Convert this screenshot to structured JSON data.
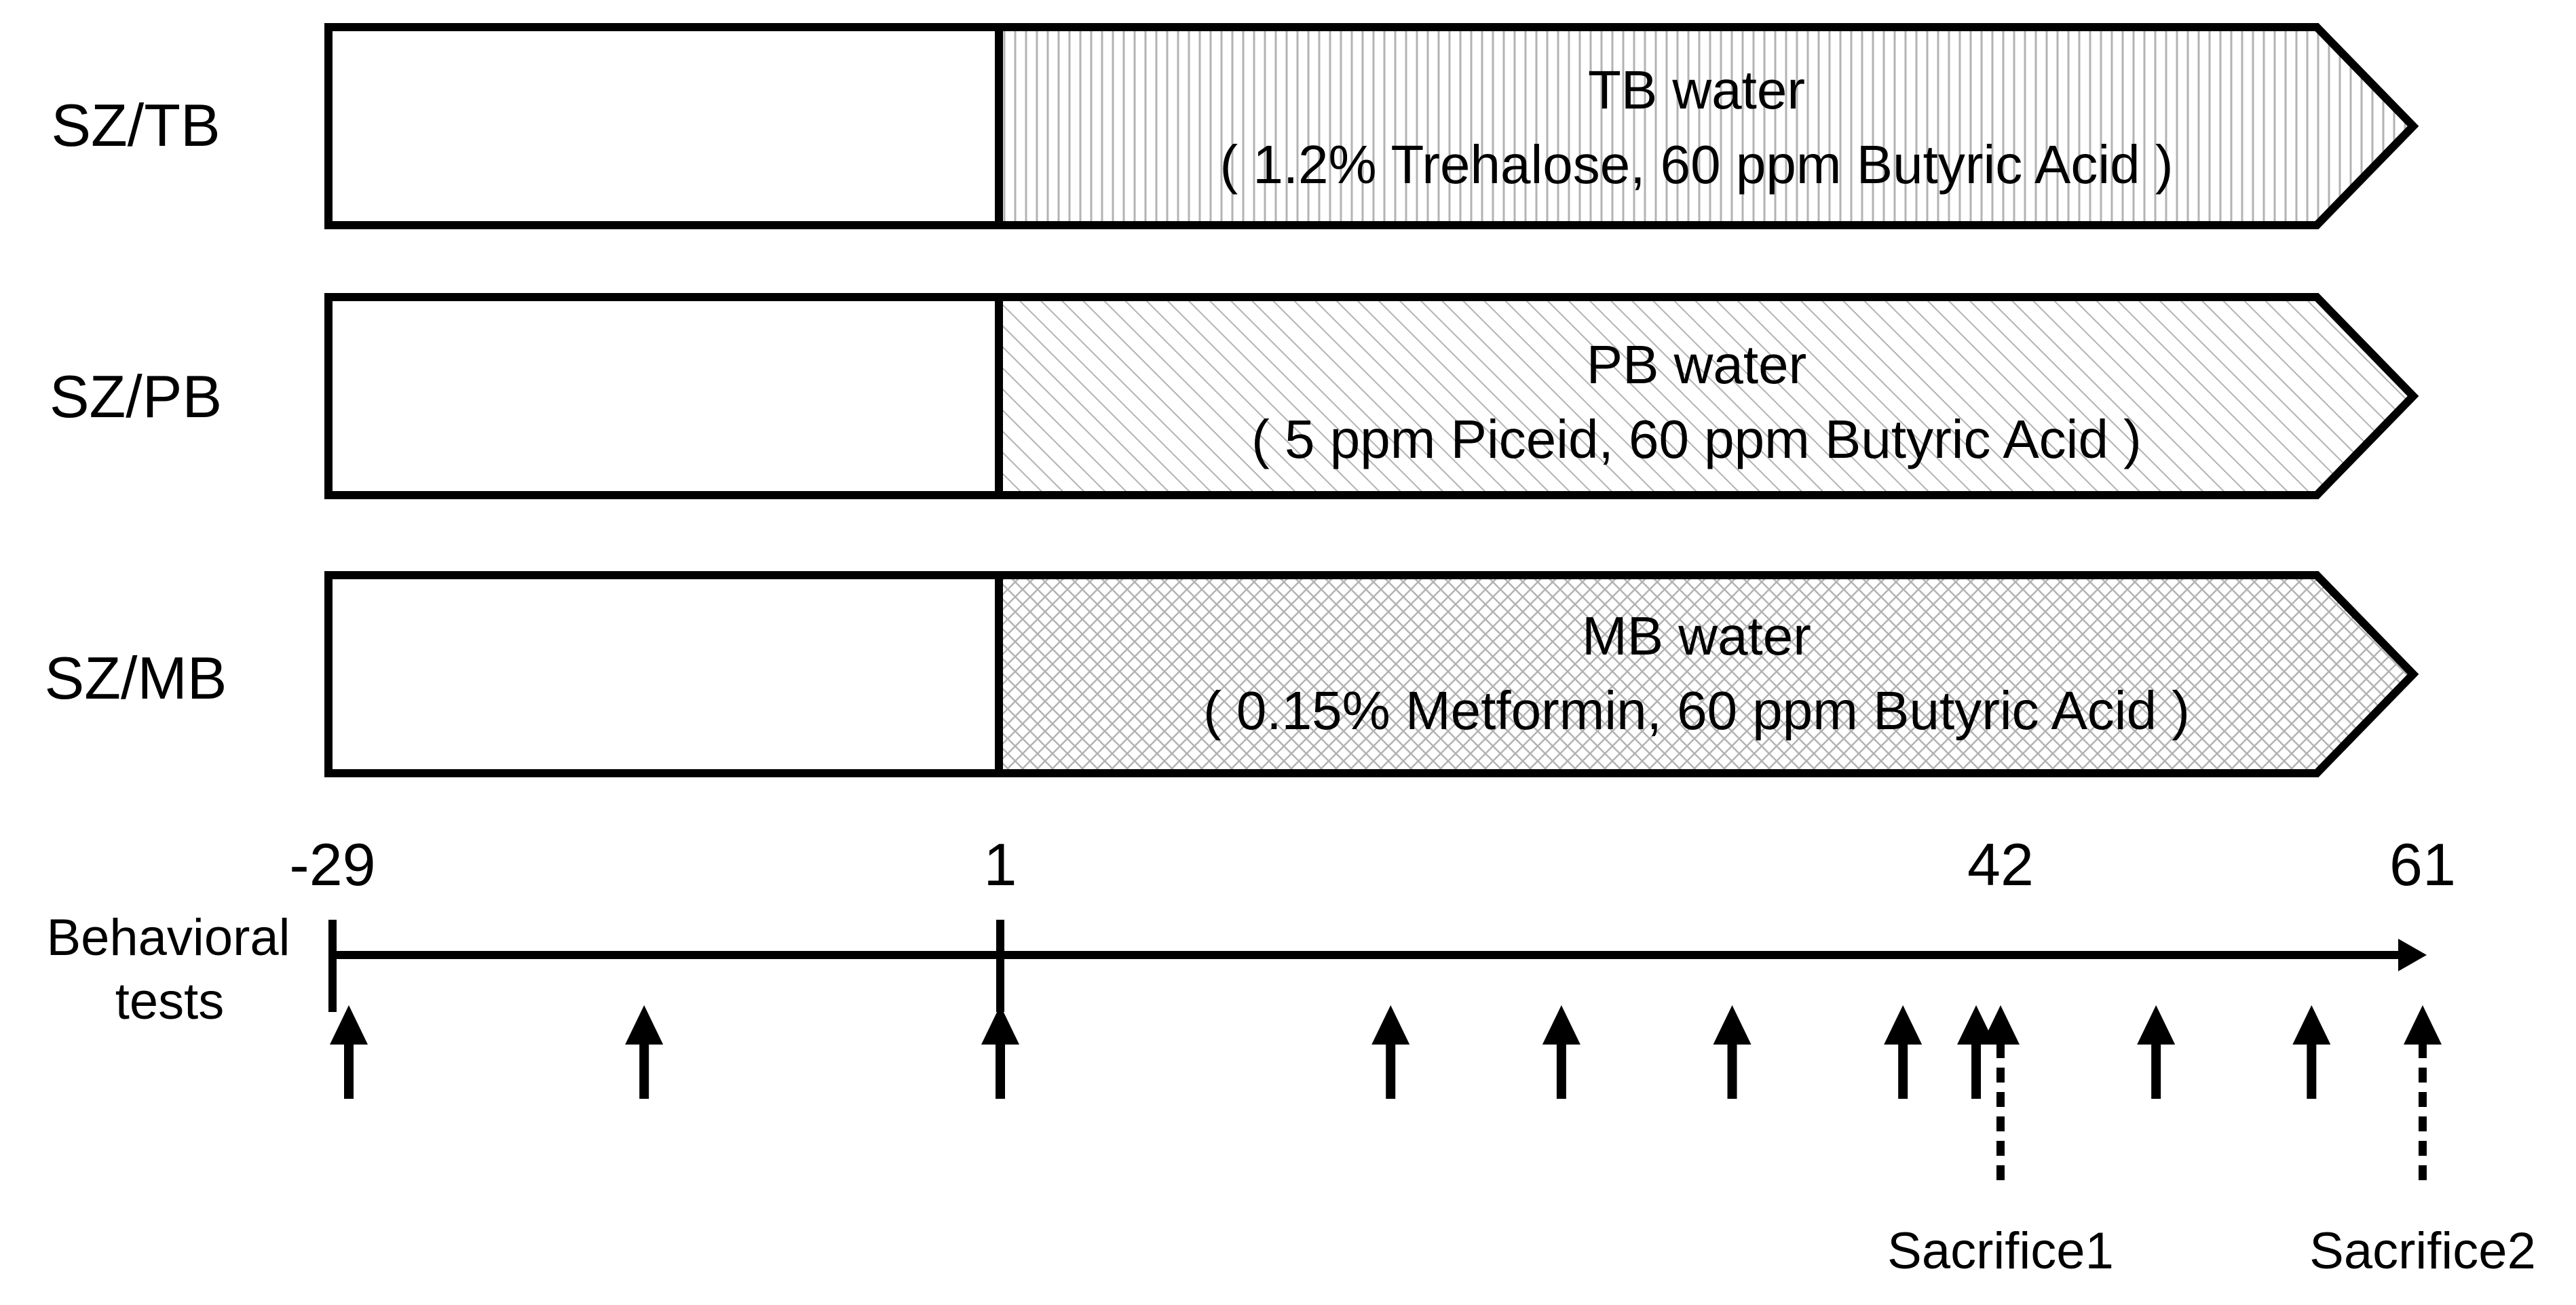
{
  "colors": {
    "stroke": "#000000",
    "fill": "#ffffff",
    "pattern": "#b3b3b3"
  },
  "groups": [
    {
      "label": "SZ/TB",
      "water": "TB water",
      "composition": "( 1.2% Trehalose, 60 ppm Butyric Acid )",
      "pattern": "vertical-lines"
    },
    {
      "label": "SZ/PB",
      "water": "PB water",
      "composition": "( 5 ppm Piceid, 60 ppm Butyric Acid )",
      "pattern": "diagonal-lines"
    },
    {
      "label": "SZ/MB",
      "water": "MB water",
      "composition": "( 0.15% Metformin, 60 ppm Butyric Acid )",
      "pattern": "crosshatch"
    }
  ],
  "timeline": {
    "ticks": [
      {
        "label": "-29",
        "day": -29
      },
      {
        "label": "1",
        "day": 1
      },
      {
        "label": "42",
        "day": 42
      },
      {
        "label": "61",
        "day": 61
      }
    ],
    "behavioral_label": [
      "Behavioral",
      "tests"
    ],
    "behavioral_test_days": [
      -29,
      -15,
      1,
      17,
      24,
      31,
      38,
      41,
      49,
      56
    ],
    "sacrifices": [
      {
        "label": "Sacrifice1",
        "day": 42
      },
      {
        "label": "Sacrifice2",
        "day": 61
      }
    ]
  }
}
